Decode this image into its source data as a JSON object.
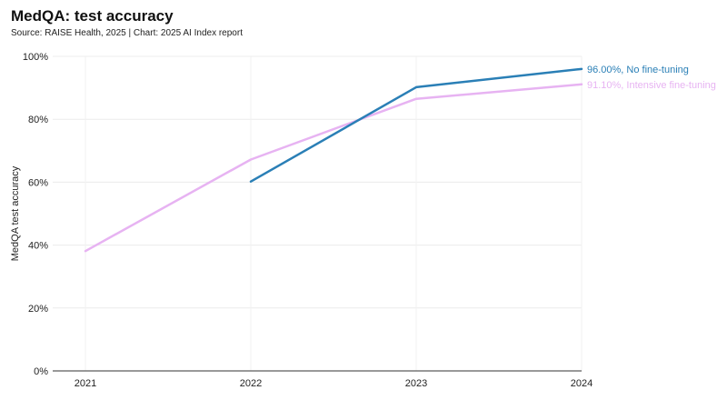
{
  "chart_data": {
    "type": "line",
    "title": "MedQA: test accuracy",
    "subtitle": "Source: RAISE Health, 2025 | Chart: 2025 AI Index report",
    "xlabel": "",
    "ylabel": "MedQA test accuracy",
    "x": [
      "2021",
      "2022",
      "2023",
      "2024"
    ],
    "yticks": [
      "0%",
      "20%",
      "40%",
      "60%",
      "80%",
      "100%"
    ],
    "ylim": [
      0,
      100
    ],
    "grid": true,
    "series": [
      {
        "label": "91.10%, Intensive fine-tuning",
        "color": "#e7b3f2",
        "x": [
          "2021",
          "2022",
          "2023",
          "2024"
        ],
        "values": [
          38.1,
          67.2,
          86.5,
          91.1
        ]
      },
      {
        "label": "96.00%, No fine-tuning",
        "color": "#2a7fb6",
        "x": [
          "2022",
          "2023",
          "2024"
        ],
        "values": [
          60.2,
          90.2,
          96.0
        ]
      }
    ]
  }
}
